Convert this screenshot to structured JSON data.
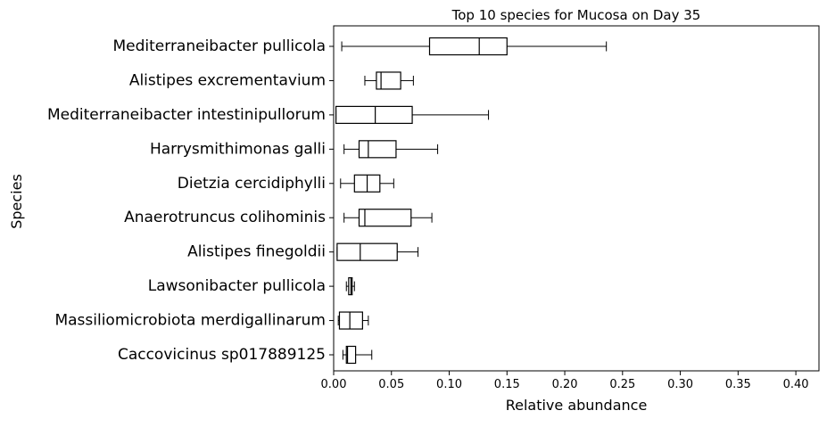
{
  "chart_data": {
    "type": "boxplot",
    "orientation": "horizontal",
    "title": "Top 10 species for Mucosa on Day 35",
    "xlabel": "Relative abundance",
    "ylabel": "Species",
    "xlim": [
      0.0,
      0.42
    ],
    "xticks": [
      0.0,
      0.05,
      0.1,
      0.15,
      0.2,
      0.25,
      0.3,
      0.35,
      0.4
    ],
    "xtick_labels": [
      "0.00",
      "0.05",
      "0.10",
      "0.15",
      "0.20",
      "0.25",
      "0.30",
      "0.35",
      "0.40"
    ],
    "grid": false,
    "categories": [
      "Mediterraneibacter pullicola",
      "Alistipes excrementavium",
      "Mediterraneibacter intestinipullorum",
      "Harrysmithimonas galli",
      "Dietzia cercidiphylli",
      "Anaerotruncus colihominis",
      "Alistipes finegoldii",
      "Lawsonibacter pullicola",
      "Massiliomicrobiota merdigallinarum",
      "Caccovicinus sp017889125"
    ],
    "boxes": [
      {
        "whisker_low": 0.007,
        "q1": 0.083,
        "median": 0.126,
        "q3": 0.15,
        "whisker_high": 0.236
      },
      {
        "whisker_low": 0.027,
        "q1": 0.037,
        "median": 0.041,
        "q3": 0.058,
        "whisker_high": 0.069
      },
      {
        "whisker_low": 0.002,
        "q1": 0.002,
        "median": 0.036,
        "q3": 0.068,
        "whisker_high": 0.134
      },
      {
        "whisker_low": 0.009,
        "q1": 0.022,
        "median": 0.03,
        "q3": 0.054,
        "whisker_high": 0.09
      },
      {
        "whisker_low": 0.006,
        "q1": 0.018,
        "median": 0.029,
        "q3": 0.04,
        "whisker_high": 0.052
      },
      {
        "whisker_low": 0.009,
        "q1": 0.022,
        "median": 0.027,
        "q3": 0.067,
        "whisker_high": 0.085
      },
      {
        "whisker_low": 0.003,
        "q1": 0.003,
        "median": 0.023,
        "q3": 0.055,
        "whisker_high": 0.073
      },
      {
        "whisker_low": 0.011,
        "q1": 0.013,
        "median": 0.015,
        "q3": 0.016,
        "whisker_high": 0.018
      },
      {
        "whisker_low": 0.004,
        "q1": 0.005,
        "median": 0.014,
        "q3": 0.025,
        "whisker_high": 0.03
      },
      {
        "whisker_low": 0.008,
        "q1": 0.011,
        "median": 0.012,
        "q3": 0.019,
        "whisker_high": 0.033
      }
    ],
    "colors": {
      "box_edge": "#000000",
      "median": "#000000",
      "background": "#ffffff"
    }
  }
}
